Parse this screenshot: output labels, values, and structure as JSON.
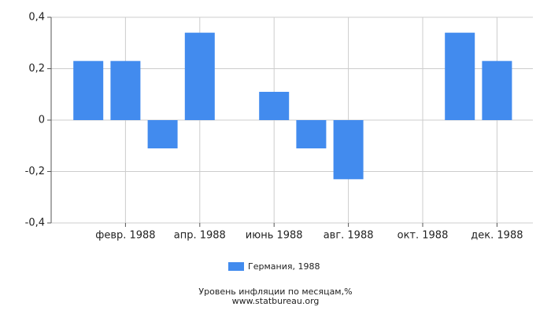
{
  "chart_data": {
    "type": "bar",
    "title": "Уровень инфляции по месяцам,%",
    "source": "www.statbureau.org",
    "categories": [
      null,
      "февр. 1988",
      null,
      "апр. 1988",
      null,
      "июнь 1988",
      null,
      "авг. 1988",
      null,
      "окт. 1988",
      null,
      "дек. 1988"
    ],
    "series": [
      {
        "name": "Германия, 1988",
        "color": "#428bee",
        "values": [
          0.23,
          0.23,
          -0.11,
          0.34,
          0,
          0.11,
          -0.11,
          -0.23,
          0,
          0,
          0.34,
          0.23
        ]
      }
    ],
    "ylim": [
      -0.4,
      0.4
    ],
    "yticks": [
      {
        "value": -0.4,
        "label": "-0,4"
      },
      {
        "value": -0.2,
        "label": "-0,2"
      },
      0,
      {
        "value": 0.2,
        "label": "0,2"
      },
      {
        "value": 0.4,
        "label": "0,4"
      }
    ],
    "grid": true
  }
}
